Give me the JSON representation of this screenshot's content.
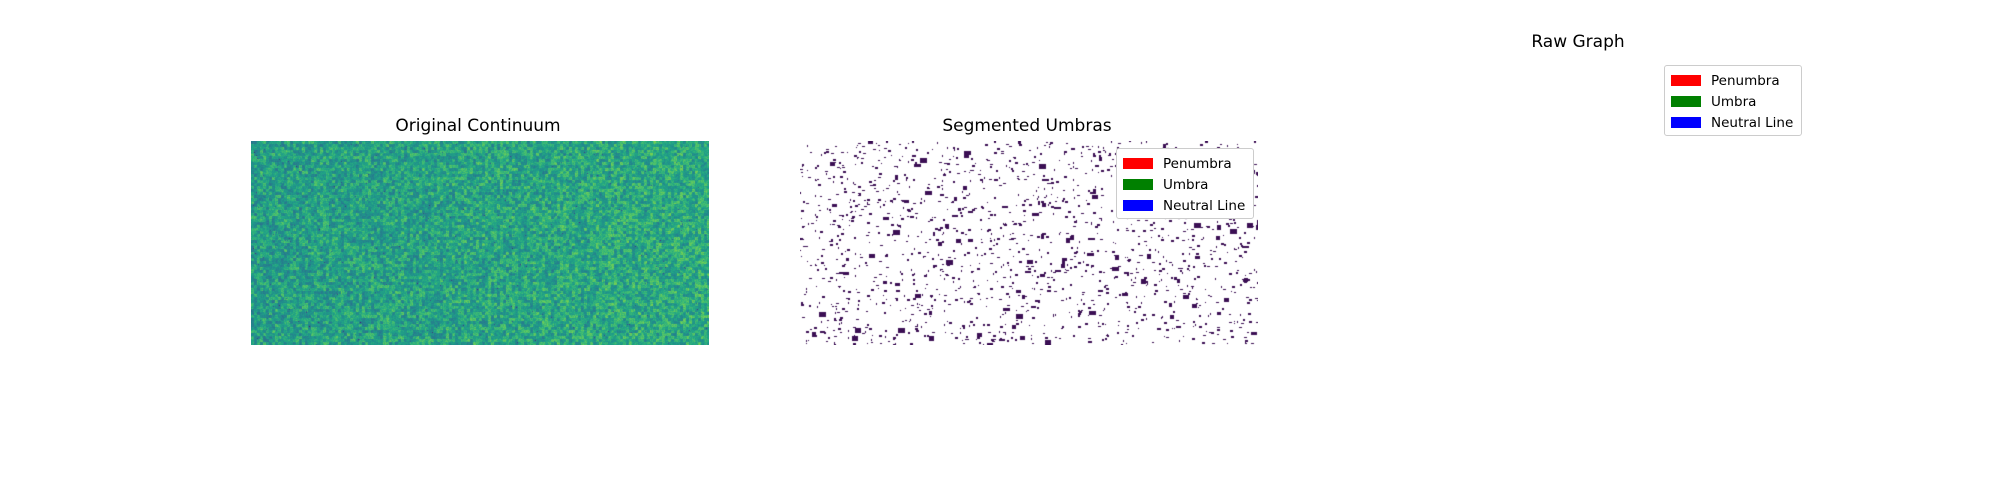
{
  "chart_data": [
    {
      "type": "heatmap",
      "title": "Original Continuum",
      "xlabel": "",
      "ylabel": "",
      "colormap": "viridis",
      "description_of_values": "noisy granulation field, mostly mid-range teal-green values"
    },
    {
      "type": "heatmap",
      "title": "Segmented Umbras",
      "xlabel": "",
      "ylabel": "",
      "colormap": "binary-purple",
      "legend_position": "upper-right",
      "legend": [
        {
          "label": "Penumbra",
          "color": "#ff0000"
        },
        {
          "label": "Umbra",
          "color": "#008000"
        },
        {
          "label": "Neutral Line",
          "color": "#0000ff"
        }
      ]
    },
    {
      "type": "empty",
      "title": "Raw Graph",
      "legend_position": "upper-right",
      "legend": [
        {
          "label": "Penumbra",
          "color": "#ff0000"
        },
        {
          "label": "Umbra",
          "color": "#008000"
        },
        {
          "label": "Neutral Line",
          "color": "#0000ff"
        }
      ]
    }
  ]
}
